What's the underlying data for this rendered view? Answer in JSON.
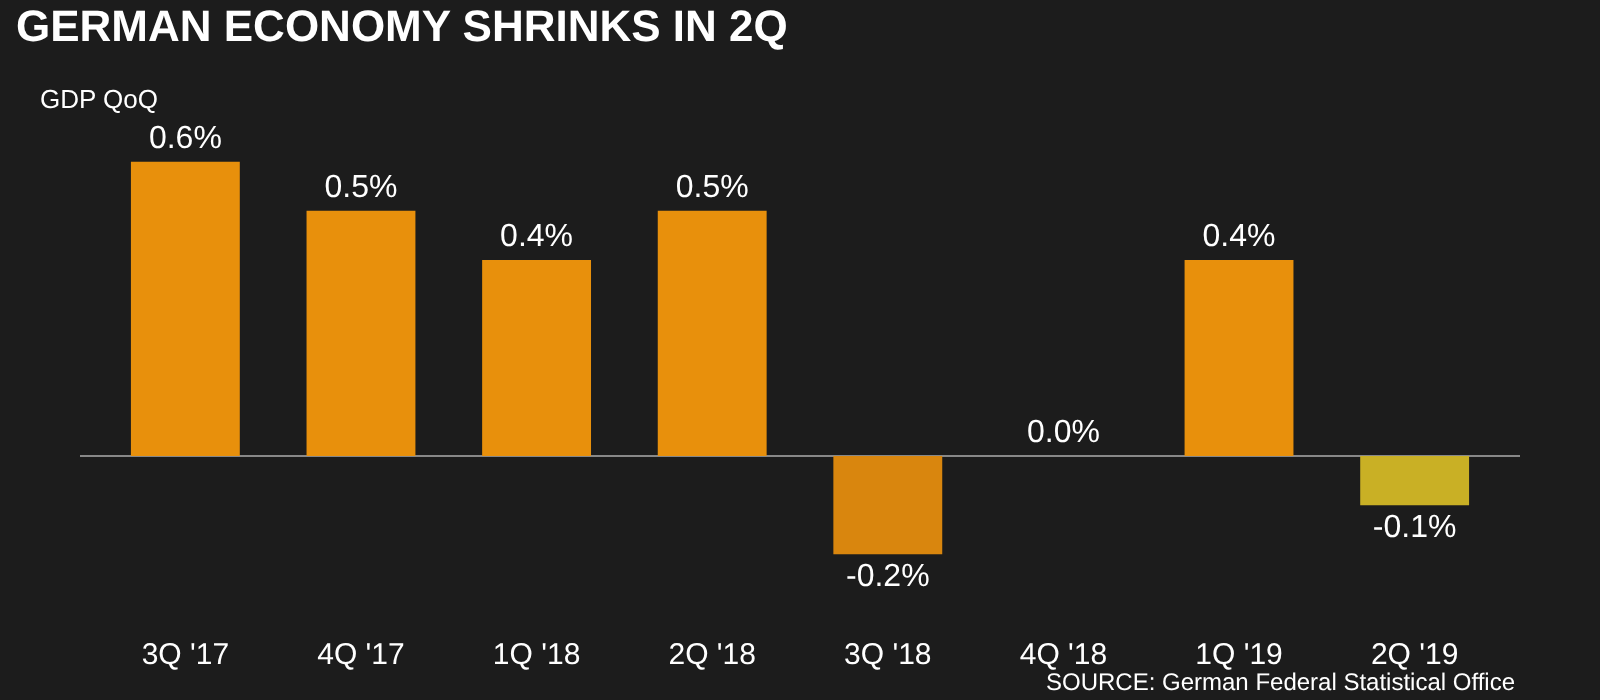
{
  "chart_data": {
    "type": "bar",
    "title": "GERMAN ECONOMY SHRINKS IN 2Q",
    "subtitle": "GDP QoQ",
    "categories": [
      "3Q '17",
      "4Q '17",
      "1Q '18",
      "2Q '18",
      "3Q '18",
      "4Q '18",
      "1Q '19",
      "2Q '19"
    ],
    "values": [
      0.6,
      0.5,
      0.4,
      0.5,
      -0.2,
      0.0,
      0.4,
      -0.1
    ],
    "colors": [
      "#e8900c",
      "#e8900c",
      "#e8900c",
      "#e8900c",
      "#d9860e",
      "#e8900c",
      "#e8900c",
      "#c9b025"
    ],
    "value_labels": [
      "0.6%",
      "0.5%",
      "0.4%",
      "0.5%",
      "-0.2%",
      "0.0%",
      "0.4%",
      "-0.1%"
    ],
    "tick_labels": "x",
    "grid": false,
    "annotations": [
      "SOURCE: German Federal Statistical Office"
    ]
  }
}
